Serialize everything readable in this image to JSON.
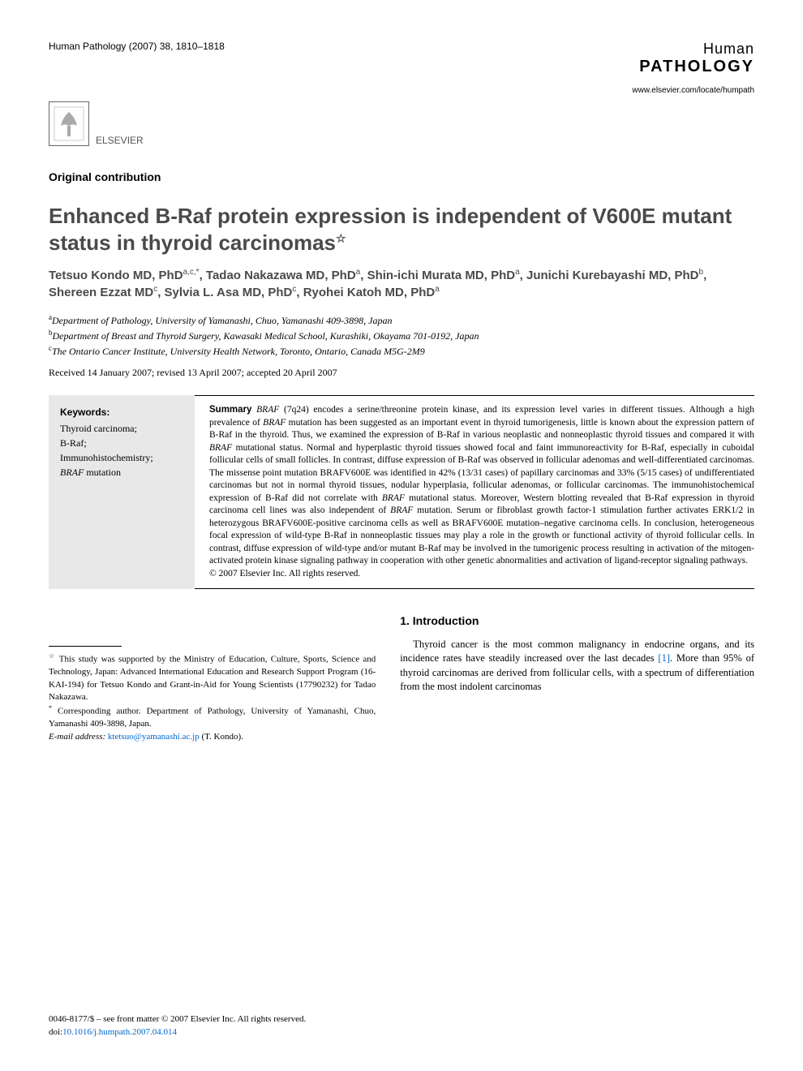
{
  "header": {
    "citation": "Human Pathology (2007) 38, 1810–1818",
    "journal_line1": "Human",
    "journal_line2": "PATHOLOGY",
    "journal_url": "www.elsevier.com/locate/humpath",
    "publisher": "ELSEVIER"
  },
  "article_type": "Original contribution",
  "title": "Enhanced B-Raf protein expression is independent of V600E mutant status in thyroid carcinomas",
  "title_note": "☆",
  "authors_html": "Tetsuo Kondo MD, PhD<sup>a,c,*</sup>, Tadao Nakazawa MD, PhD<sup>a</sup>, Shin-ichi Murata MD, PhD<sup>a</sup>, Junichi Kurebayashi MD, PhD<sup>b</sup>, Shereen Ezzat MD<sup>c</sup>, Sylvia L. Asa MD, PhD<sup>c</sup>, Ryohei Katoh MD, PhD<sup>a</sup>",
  "affiliations": [
    {
      "sup": "a",
      "text": "Department of Pathology, University of Yamanashi, Chuo, Yamanashi 409-3898, Japan"
    },
    {
      "sup": "b",
      "text": "Department of Breast and Thyroid Surgery, Kawasaki Medical School, Kurashiki, Okayama 701-0192, Japan"
    },
    {
      "sup": "c",
      "text": "The Ontario Cancer Institute, University Health Network, Toronto, Ontario, Canada M5G-2M9"
    }
  ],
  "dates": "Received 14 January 2007; revised 13 April 2007; accepted 20 April 2007",
  "keywords": {
    "title": "Keywords:",
    "items": [
      "Thyroid carcinoma;",
      "B-Raf;",
      "Immunohistochemistry;",
      "BRAF mutation"
    ]
  },
  "summary": {
    "label": "Summary",
    "text": "BRAF (7q24) encodes a serine/threonine protein kinase, and its expression level varies in different tissues. Although a high prevalence of BRAF mutation has been suggested as an important event in thyroid tumorigenesis, little is known about the expression pattern of B-Raf in the thyroid. Thus, we examined the expression of B-Raf in various neoplastic and nonneoplastic thyroid tissues and compared it with BRAF mutational status. Normal and hyperplastic thyroid tissues showed focal and faint immunoreactivity for B-Raf, especially in cuboidal follicular cells of small follicles. In contrast, diffuse expression of B-Raf was observed in follicular adenomas and well-differentiated carcinomas. The missense point mutation BRAFV600E was identified in 42% (13/31 cases) of papillary carcinomas and 33% (5/15 cases) of undifferentiated carcinomas but not in normal thyroid tissues, nodular hyperplasia, follicular adenomas, or follicular carcinomas. The immunohistochemical expression of B-Raf did not correlate with BRAF mutational status. Moreover, Western blotting revealed that B-Raf expression in thyroid carcinoma cell lines was also independent of BRAF mutation. Serum or fibroblast growth factor-1 stimulation further activates ERK1/2 in heterozygous BRAFV600E-positive carcinoma cells as well as BRAFV600E mutation–negative carcinoma cells. In conclusion, heterogeneous focal expression of wild-type B-Raf in nonneoplastic tissues may play a role in the growth or functional activity of thyroid follicular cells. In contrast, diffuse expression of wild-type and/or mutant B-Raf may be involved in the tumorigenic process resulting in activation of the mitogen-activated protein kinase signaling pathway in cooperation with other genetic abnormalities and activation of ligand-receptor signaling pathways.",
    "copyright": "© 2007 Elsevier Inc. All rights reserved."
  },
  "footnotes": {
    "funding": "This study was supported by the Ministry of Education, Culture, Sports, Science and Technology, Japan: Advanced International Education and Research Support Program (16-KAI-194) for Tetsuo Kondo and Grant-in-Aid for Young Scientists (17790232) for Tadao Nakazawa.",
    "corresponding": "Corresponding author. Department of Pathology, University of Yamanashi, Chuo, Yamanashi 409-3898, Japan.",
    "email_label": "E-mail address:",
    "email": "ktetsuo@yamanashi.ac.jp",
    "email_person": "(T. Kondo)."
  },
  "section1": {
    "heading": "1. Introduction",
    "para": "Thyroid cancer is the most common malignancy in endocrine organs, and its incidence rates have steadily increased over the last decades [1]. More than 95% of thyroid carcinomas are derived from follicular cells, with a spectrum of differentiation from the most indolent carcinomas"
  },
  "copyright_block": {
    "line1": "0046-8177/$ – see front matter © 2007 Elsevier Inc. All rights reserved.",
    "doi_label": "doi:",
    "doi": "10.1016/j.humpath.2007.04.014"
  },
  "colors": {
    "text": "#000000",
    "heading_gray": "#4a4a4a",
    "keyword_bg": "#e8e8e8",
    "link": "#0066cc",
    "background": "#ffffff"
  },
  "typography": {
    "body_font": "Georgia/Times",
    "heading_font": "Arial/Helvetica",
    "title_size_pt": 20,
    "author_size_pt": 11,
    "body_size_pt": 9,
    "summary_size_pt": 8.5
  }
}
